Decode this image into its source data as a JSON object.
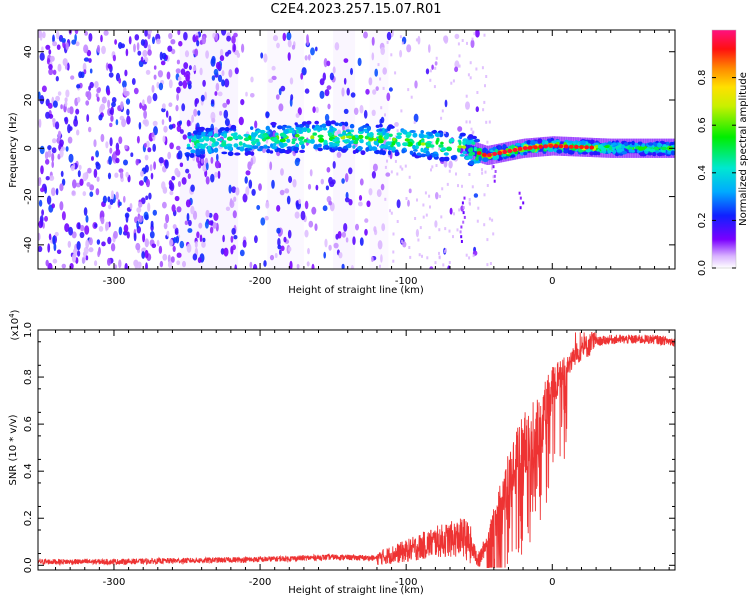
{
  "title": "C2E4.2023.257.15.07.R01",
  "chart_data": [
    {
      "type": "heatmap",
      "xlabel": "Height of straight line (km)",
      "ylabel": "Frequency (Hz)",
      "xlim": [
        -352,
        84
      ],
      "ylim": [
        -50,
        49
      ],
      "xticks": [
        -300,
        -200,
        -100,
        0
      ],
      "yticks": [
        -40,
        -20,
        0,
        20,
        40
      ],
      "xtick_labels": [
        "-300",
        "-200",
        "-100",
        "0"
      ],
      "ytick_labels": [
        "-40",
        "-20",
        "0",
        "20",
        "40"
      ],
      "colorbar": {
        "label": "Normalized spectral amplitude",
        "range": [
          0,
          1
        ],
        "ticks": [
          0.0,
          0.2,
          0.4,
          0.6,
          0.8
        ],
        "tick_labels": [
          "0.0",
          "0.2",
          "0.4",
          "0.6",
          "0.8"
        ],
        "colormap": "rainbow (white → violet → blue → cyan → green → yellow → red → magenta)"
      },
      "features": {
        "broadband_noise_extent_km": [
          -352,
          -110
        ],
        "signal_track": [
          {
            "x": -250,
            "freq": 2,
            "amp": 0.35
          },
          {
            "x": -200,
            "freq": 4,
            "amp": 0.45
          },
          {
            "x": -150,
            "freq": 5,
            "amp": 0.5
          },
          {
            "x": -100,
            "freq": 3,
            "amp": 0.5
          },
          {
            "x": -60,
            "freq": 0,
            "amp": 0.55
          },
          {
            "x": -45,
            "freq": -3,
            "amp": 0.8
          },
          {
            "x": -20,
            "freq": 0,
            "amp": 0.85
          },
          {
            "x": 0,
            "freq": 1,
            "amp": 0.9
          },
          {
            "x": 40,
            "freq": 0,
            "amp": 0.5
          },
          {
            "x": 84,
            "freq": 0,
            "amp": 0.45
          }
        ]
      }
    },
    {
      "type": "line",
      "xlabel": "Height of straight line (km)",
      "ylabel": "SNR (10 * v/v)",
      "y_multiplier": "(x10",
      "y_multiplier_exp": "4",
      "y_multiplier_close": ")",
      "xlim": [
        -352,
        84
      ],
      "ylim": [
        -0.02,
        1.0
      ],
      "xticks": [
        -300,
        -200,
        -100,
        0
      ],
      "yticks": [
        0.0,
        0.2,
        0.4,
        0.6,
        0.8,
        1.0
      ],
      "xtick_labels": [
        "-300",
        "-200",
        "-100",
        "0"
      ],
      "ytick_labels": [
        "0.0",
        "0.2",
        "0.4",
        "0.6",
        "0.8",
        "1.0"
      ],
      "color": "#ee3333",
      "series": [
        {
          "x": [
            -352,
            -300,
            -250,
            -200,
            -150,
            -120,
            -100,
            -80,
            -60,
            -50,
            -45,
            -40,
            -35,
            -30,
            -25,
            -20,
            -15,
            -10,
            -5,
            0,
            10,
            20,
            30,
            40,
            50,
            60,
            70,
            84
          ],
          "values": [
            0.015,
            0.015,
            0.02,
            0.025,
            0.035,
            0.03,
            0.06,
            0.1,
            0.12,
            0.02,
            0.1,
            0.2,
            0.3,
            0.38,
            0.45,
            0.5,
            0.55,
            0.6,
            0.68,
            0.75,
            0.85,
            0.92,
            0.95,
            0.96,
            0.96,
            0.96,
            0.96,
            0.95
          ]
        }
      ]
    }
  ]
}
